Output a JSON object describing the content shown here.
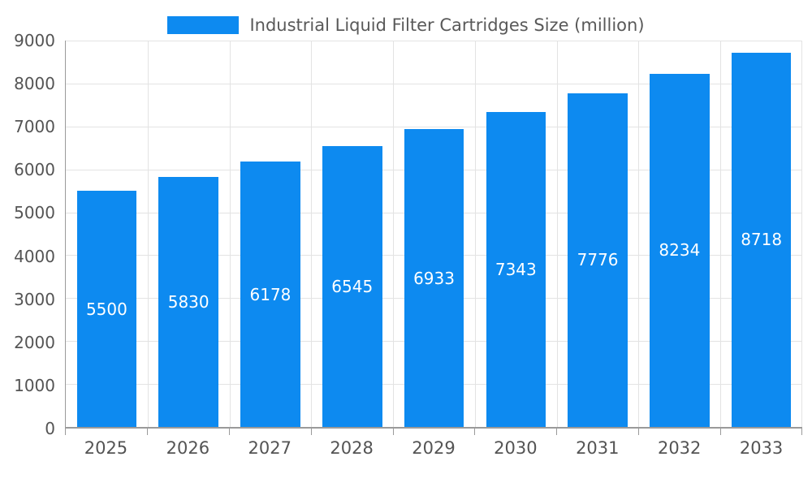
{
  "legend": {
    "label": "Industrial Liquid Filter Cartridges Size (million)"
  },
  "chart_data": {
    "type": "bar",
    "title": "Industrial Liquid Filter Cartridges Size (million)",
    "categories": [
      "2025",
      "2026",
      "2027",
      "2028",
      "2029",
      "2030",
      "2031",
      "2032",
      "2033"
    ],
    "values": [
      5500,
      5830,
      6178,
      6545,
      6933,
      7343,
      7776,
      8234,
      8718
    ],
    "xlabel": "",
    "ylabel": "",
    "ylim": [
      0,
      9000
    ],
    "ytick_step": 1000,
    "grid": true,
    "legend_position": "top",
    "bar_color": "#0d8af0",
    "value_label_color": "#ffffff",
    "axis_text_color": "#545454",
    "grid_color": "#e3e3e3",
    "axis_line_color": "#9a9a9a",
    "background_color": "#ffffff"
  }
}
